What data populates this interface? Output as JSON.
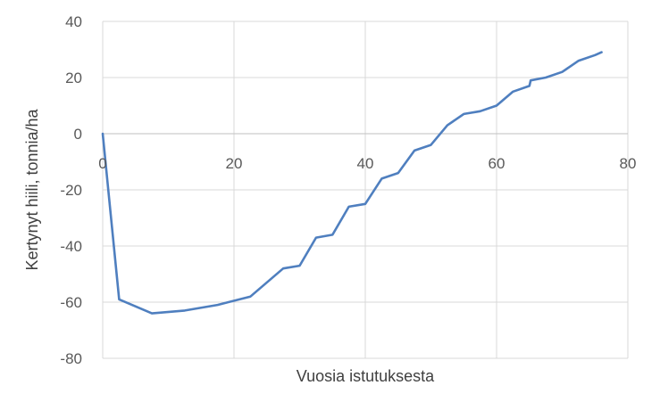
{
  "chart_data": {
    "type": "line",
    "title": "",
    "xlabel": "Vuosia istutuksesta",
    "ylabel": "Kertynyt hiili, tonnia/ha",
    "xlim": [
      0,
      80
    ],
    "ylim": [
      -80,
      40
    ],
    "xticks": [
      0,
      20,
      40,
      60,
      80
    ],
    "yticks": [
      40,
      20,
      0,
      -20,
      -40,
      -60,
      -80
    ],
    "grid": true,
    "legend": "none",
    "series": [
      {
        "color": "#4f7fbf",
        "points": [
          [
            0,
            0
          ],
          [
            2.5,
            -59
          ],
          [
            7.5,
            -64
          ],
          [
            12.5,
            -63
          ],
          [
            17.5,
            -61
          ],
          [
            22.5,
            -58
          ],
          [
            27.5,
            -48
          ],
          [
            30,
            -47
          ],
          [
            32.5,
            -37
          ],
          [
            35,
            -36
          ],
          [
            37.5,
            -26
          ],
          [
            40,
            -25
          ],
          [
            42.5,
            -16
          ],
          [
            45,
            -14
          ],
          [
            47.5,
            -6
          ],
          [
            50,
            -4
          ],
          [
            52.5,
            3
          ],
          [
            55,
            7
          ],
          [
            57.5,
            8
          ],
          [
            60,
            10
          ],
          [
            62.5,
            15
          ],
          [
            65,
            17
          ],
          [
            65.2,
            19
          ],
          [
            67.5,
            20
          ],
          [
            70,
            22
          ],
          [
            72.5,
            26
          ],
          [
            75,
            28
          ],
          [
            76,
            29
          ]
        ]
      }
    ]
  }
}
